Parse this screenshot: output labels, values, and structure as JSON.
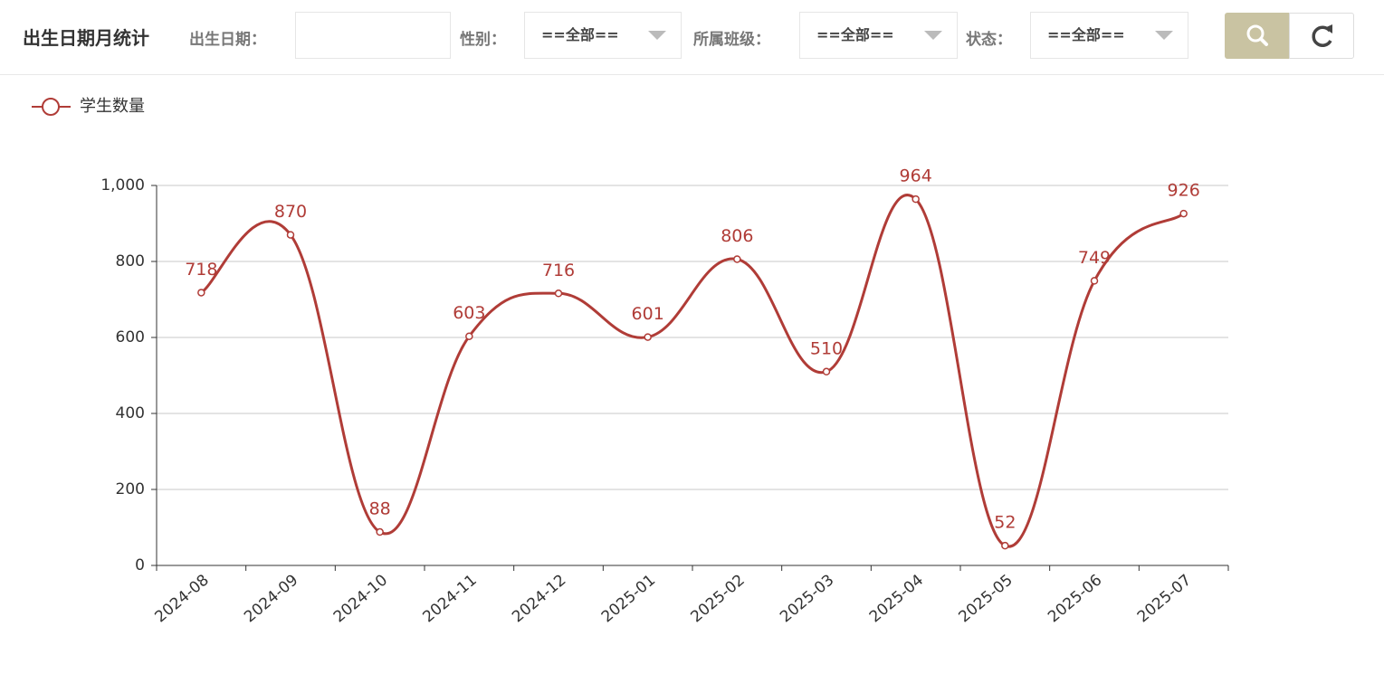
{
  "header": {
    "title": "出生日期月统计",
    "filters": [
      {
        "label": "出生日期："
      },
      {
        "label": "性别：",
        "value": "==全部=="
      },
      {
        "label": "所属班级：",
        "value": "==全部=="
      },
      {
        "label": "状态：",
        "value": "==全部=="
      }
    ]
  },
  "chart_data": {
    "type": "line",
    "smooth": true,
    "categories": [
      "2024-08",
      "2024-09",
      "2024-10",
      "2024-11",
      "2024-12",
      "2025-01",
      "2025-02",
      "2025-03",
      "2025-04",
      "2025-05",
      "2025-06",
      "2025-07"
    ],
    "series": [
      {
        "name": "学生数量",
        "color": "#b03c37",
        "values": [
          718,
          870,
          88,
          603,
          716,
          601,
          806,
          510,
          964,
          52,
          749,
          926
        ]
      }
    ],
    "ylim": [
      0,
      1000
    ],
    "yticks": [
      0,
      200,
      400,
      600,
      800,
      {
        "value": 1000,
        "label": "1,000"
      }
    ],
    "grid": true
  }
}
